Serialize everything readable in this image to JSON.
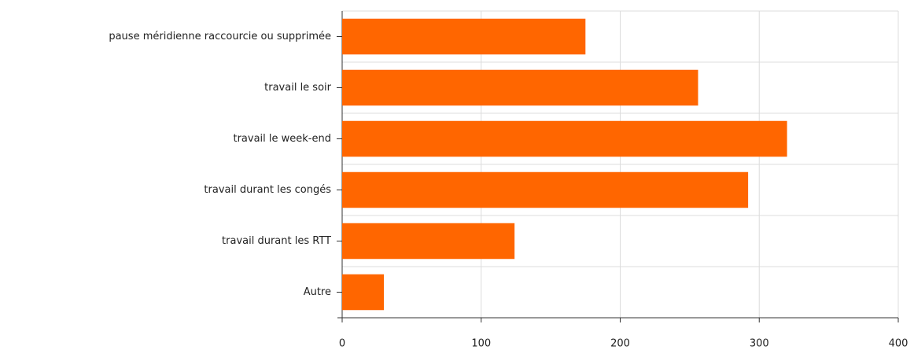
{
  "chart_data": {
    "type": "bar",
    "orientation": "horizontal",
    "categories": [
      "pause méridienne raccourcie ou supprimée",
      "travail le soir",
      "travail le week-end",
      "travail durant les congés",
      "travail durant les RTT",
      "Autre"
    ],
    "values": [
      175,
      256,
      320,
      292,
      124,
      30
    ],
    "color": "#ff6600",
    "xlim": [
      0,
      400
    ],
    "xticks": [
      0,
      100,
      200,
      300,
      400
    ],
    "grid": true
  }
}
